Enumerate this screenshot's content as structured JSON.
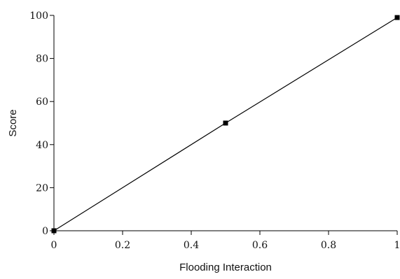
{
  "chart_data": {
    "type": "line",
    "title": "",
    "xlabel": "Flooding Interaction",
    "ylabel": "Score",
    "xlim": [
      0,
      1
    ],
    "ylim": [
      0,
      100
    ],
    "x_ticks": [
      0,
      0.2,
      0.4,
      0.6,
      0.8,
      1
    ],
    "x_tick_labels": [
      "0",
      "0.2",
      "0.4",
      "0.6",
      "0.8",
      "1"
    ],
    "y_ticks": [
      0,
      20,
      40,
      60,
      80,
      100
    ],
    "y_tick_labels": [
      "0",
      "20",
      "40",
      "60",
      "80",
      "100"
    ],
    "grid": false,
    "series": [
      {
        "x": [
          0,
          0.5,
          1
        ],
        "y": [
          0,
          50,
          99
        ],
        "marker": "square",
        "color": "#000000"
      }
    ]
  }
}
